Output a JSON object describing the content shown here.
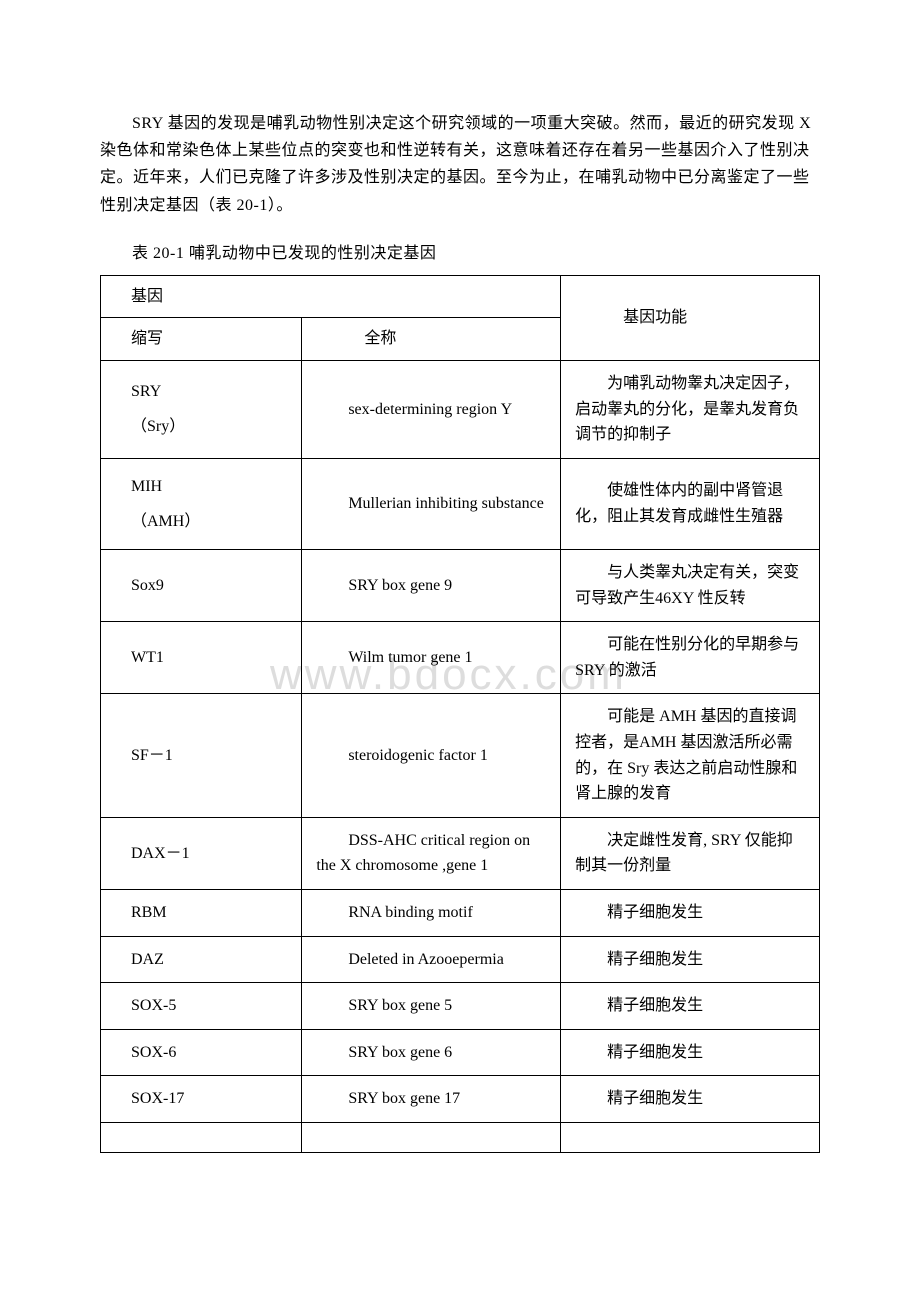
{
  "intro_paragraph": "SRY 基因的发现是哺乳动物性别决定这个研究领域的一项重大突破。然而，最近的研究发现 X 染色体和常染色体上某些位点的突变也和性逆转有关，这意味着还存在着另一些基因介入了性别决定。近年来，人们已克隆了许多涉及性别决定的基因。至今为止，在哺乳动物中已分离鉴定了一些性别决定基因（表 20-1）。",
  "table_caption": "表 20-1 哺乳动物中已发现的性别决定基因",
  "watermark_text": "www.bdocx.com",
  "header": {
    "col1": "基因",
    "col1_sub_abbr": "缩写",
    "col1_sub_full": "全称",
    "col2": "基因功能"
  },
  "rows": [
    {
      "abbr_line1": "SRY",
      "abbr_line2": "（Sry）",
      "full": "sex-determining region Y",
      "func": "为哺乳动物睾丸决定因子，启动睾丸的分化，是睾丸发育负调节的抑制子"
    },
    {
      "abbr_line1": "MIH",
      "abbr_line2": "（AMH）",
      "full": "Mullerian inhibiting substance",
      "func": "使雄性体内的副中肾管退化，阻止其发育成雌性生殖器"
    },
    {
      "abbr": "Sox9",
      "full": "SRY box gene 9",
      "func": "与人类睾丸决定有关，突变可导致产生46XY 性反转"
    },
    {
      "abbr": "WT1",
      "full": "Wilm tumor gene 1",
      "func": "可能在性别分化的早期参与 SRY 的激活"
    },
    {
      "abbr": "SF－1",
      "full": "steroidogenic factor 1",
      "func": "可能是 AMH 基因的直接调控者，是AMH 基因激活所必需的，在 Sry 表达之前启动性腺和肾上腺的发育"
    },
    {
      "abbr": "DAX－1",
      "full": "DSS-AHC critical region on the X chromosome ,gene 1",
      "func": "决定雌性发育, SRY 仅能抑制其一份剂量"
    },
    {
      "abbr": "RBM",
      "full": "RNA binding motif",
      "func": "精子细胞发生"
    },
    {
      "abbr": "DAZ",
      "full": "Deleted in Azooepermia",
      "func": "精子细胞发生"
    },
    {
      "abbr": "SOX-5",
      "full": "SRY box gene 5",
      "func": "精子细胞发生"
    },
    {
      "abbr": "SOX-6",
      "full": "SRY box gene 6",
      "func": "精子细胞发生"
    },
    {
      "abbr": "SOX-17",
      "full": "SRY box gene 17",
      "func": "精子细胞发生"
    }
  ],
  "colors": {
    "text": "#000000",
    "background": "#ffffff",
    "border": "#000000",
    "watermark": "#dddddd"
  },
  "typography": {
    "body_font_family": "SimSun, Times New Roman, serif",
    "body_fontsize": 16,
    "watermark_fontsize": 44
  }
}
